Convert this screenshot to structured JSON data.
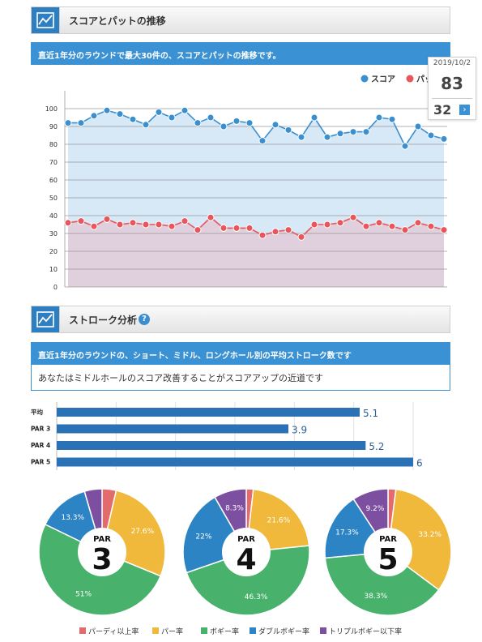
{
  "sections": {
    "trend_title": "スコアとパットの推移",
    "trend_description": "直近1年分のラウンドで最大30件の、スコアとパットの推移です。",
    "stroke_title": "ストローク分析",
    "stroke_description": "直近1年分のラウンドの、ショート、ミドル、ロングホール別の平均ストローク数です",
    "advice": "あなたはミドルホールのスコア改善することがスコアアップの近道です",
    "help_icon": "?"
  },
  "tooltip": {
    "date": "2019/10/2",
    "score": "83",
    "putt": "32",
    "arrow": "›"
  },
  "colors": {
    "score": "#3a8fd0",
    "putt": "#e8565c",
    "score_fill": "#d7e8f6",
    "putt_fill": "#e0cfdc",
    "bar": "#2a72b5",
    "birdie": "#e46b6b",
    "par": "#f0b93b",
    "bogey": "#48b16b",
    "double": "#2d84c4",
    "triple": "#7d4fa0"
  },
  "chart_data": [
    {
      "type": "line",
      "y_ticks": [
        "0",
        "10",
        "20",
        "30",
        "40",
        "50",
        "60",
        "70",
        "80",
        "90",
        "100"
      ],
      "ylim": [
        0,
        110
      ],
      "legend_position": "top-right",
      "grid": true,
      "series": [
        {
          "name": "スコア",
          "values": [
            92,
            92,
            96,
            99,
            97,
            94,
            91,
            98,
            95,
            99,
            92,
            95,
            90,
            93,
            92,
            82,
            91,
            88,
            84,
            95,
            84,
            86,
            87,
            87,
            95,
            94,
            79,
            90,
            85,
            83
          ]
        },
        {
          "name": "パット",
          "values": [
            36,
            37,
            34,
            38,
            35,
            36,
            35,
            35,
            34,
            37,
            32,
            39,
            33,
            33,
            33,
            29,
            31,
            32,
            28,
            35,
            35,
            36,
            39,
            34,
            36,
            34,
            32,
            36,
            34,
            32
          ]
        }
      ]
    },
    {
      "type": "bar",
      "orientation": "horizontal",
      "categories": [
        "平均",
        "PAR 3",
        "PAR 4",
        "PAR 5"
      ],
      "values": [
        5.1,
        3.9,
        5.2,
        6
      ],
      "value_labels": [
        "5.1",
        "3.9",
        "5.2",
        "6"
      ],
      "xlim": [
        0,
        6
      ],
      "grid": true
    },
    {
      "type": "pie",
      "legend": [
        "パーディ以上率",
        "パー率",
        "ボギー率",
        "ダブルボギー率",
        "トリプルボギー以下率"
      ],
      "legend_position": "bottom",
      "charts": [
        {
          "label_top": "PAR",
          "label_number": "3",
          "values": [
            3.6,
            27.6,
            51,
            13.3,
            4.5
          ],
          "labels": [
            "",
            "27.6%",
            "51%",
            "13.3%",
            ""
          ]
        },
        {
          "label_top": "PAR",
          "label_number": "4",
          "values": [
            1.8,
            21.6,
            46.3,
            22,
            8.3
          ],
          "labels": [
            "",
            "21.6%",
            "46.3%",
            "22%",
            "8.3%"
          ]
        },
        {
          "label_top": "PAR",
          "label_number": "5",
          "values": [
            2.0,
            33.2,
            38.3,
            17.3,
            9.2
          ],
          "labels": [
            "",
            "33.2%",
            "38.3%",
            "17.3%",
            "9.2%"
          ]
        }
      ]
    }
  ]
}
